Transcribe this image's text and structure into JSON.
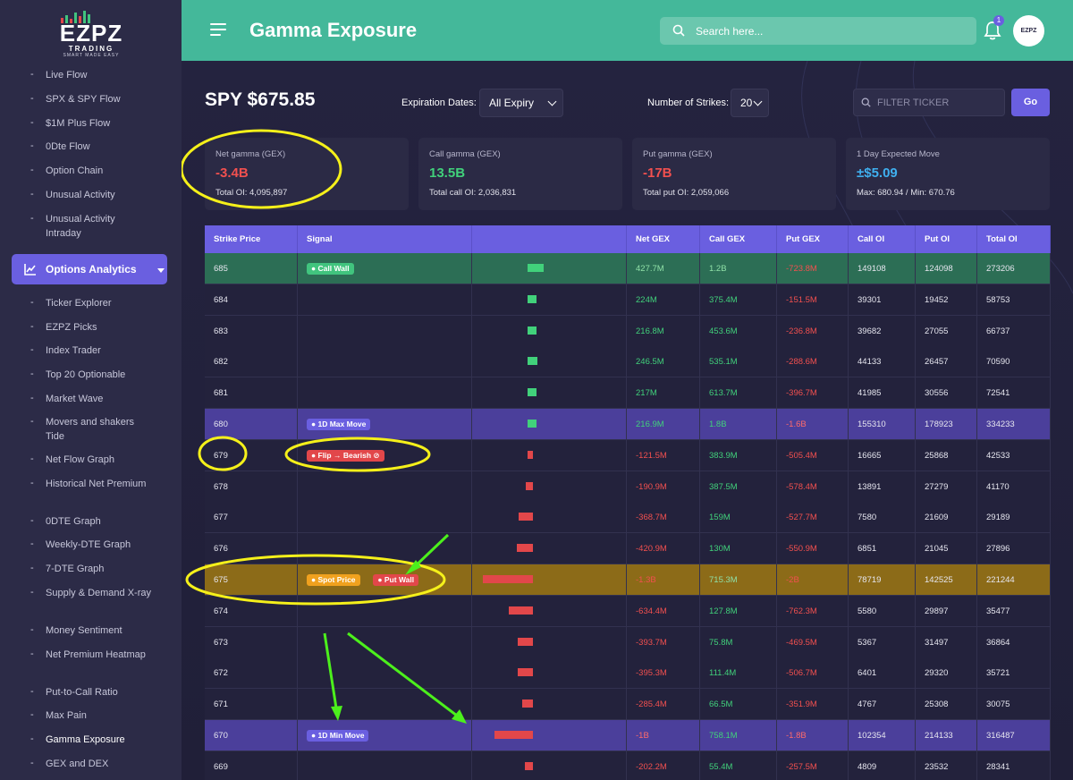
{
  "app": {
    "logo_main": "EZPZ",
    "logo_sub": "TRADING",
    "logo_tag": "SMART MADE EASY"
  },
  "sidebar": {
    "items_top": [
      "Live Flow",
      "SPX & SPY Flow",
      "$1M Plus Flow",
      "0Dte Flow",
      "Option Chain",
      "Unusual Activity",
      "Unusual Activity Intraday"
    ],
    "section_button": "Options Analytics",
    "items_bottom": [
      "Ticker Explorer",
      "EZPZ Picks",
      "Index Trader",
      "Top 20 Optionable",
      "Market Wave",
      "Movers and shakers Tide",
      "Net Flow Graph",
      "Historical Net Premium",
      "0DTE Graph",
      "Weekly-DTE Graph",
      "7-DTE Graph",
      "Supply & Demand X-ray",
      "Money Sentiment",
      "Net Premium Heatmap",
      "Put-to-Call Ratio",
      "Max Pain",
      "Gamma Exposure",
      "GEX and DEX"
    ],
    "active_item": "Gamma Exposure"
  },
  "header": {
    "title": "Gamma Exposure",
    "search_placeholder": "Search here...",
    "notification_count": "1",
    "avatar_text": "EZPZ"
  },
  "toolbar": {
    "ticker_price": "SPY $675.85",
    "expiration_label": "Expiration Dates:",
    "expiration_value": "All Expiry",
    "strikes_label": "Number of Strikes:",
    "strikes_value": "20",
    "filter_placeholder": "FILTER TICKER",
    "go_label": "Go"
  },
  "cards": [
    {
      "label": "Net gamma (GEX)",
      "value": "-3.4B",
      "sub": "Total OI: 4,095,897",
      "color": "#f2504f"
    },
    {
      "label": "Call gamma (GEX)",
      "value": "13.5B",
      "sub": "Total call OI: 2,036,831",
      "color": "#41d17b"
    },
    {
      "label": "Put gamma (GEX)",
      "value": "-17B",
      "sub": "Total put OI: 2,059,066",
      "color": "#f2504f"
    },
    {
      "label": "1 Day Expected Move",
      "value": "±$5.09",
      "sub": "Max: 680.94 / Min: 670.76",
      "color": "#3fb0f0"
    }
  ],
  "table": {
    "headers": [
      "Strike Price",
      "Signal",
      "",
      "Net GEX",
      "Call GEX",
      "Put GEX",
      "Call OI",
      "Put OI",
      "Total OI"
    ],
    "rows": [
      {
        "strike": "685",
        "signals": [
          {
            "text": "● Call Wall",
            "kind": "green"
          }
        ],
        "net": "427.7M",
        "call": "1.2B",
        "put": "-723.8M",
        "coi": "149108",
        "poi": "124098",
        "toi": "273206",
        "style": "callwall",
        "bar": 0.33
      },
      {
        "strike": "684",
        "signals": [],
        "net": "224M",
        "call": "375.4M",
        "put": "-151.5M",
        "coi": "39301",
        "poi": "19452",
        "toi": "58753",
        "style": "plain",
        "bar": 0.17
      },
      {
        "strike": "683",
        "signals": [],
        "net": "216.8M",
        "call": "453.6M",
        "put": "-236.8M",
        "coi": "39682",
        "poi": "27055",
        "toi": "66737",
        "style": "plain",
        "bar": 0.17
      },
      {
        "strike": "682",
        "signals": [],
        "net": "246.5M",
        "call": "535.1M",
        "put": "-288.6M",
        "coi": "44133",
        "poi": "26457",
        "toi": "70590",
        "style": "plain",
        "bar": 0.19
      },
      {
        "strike": "681",
        "signals": [],
        "net": "217M",
        "call": "613.7M",
        "put": "-396.7M",
        "coi": "41985",
        "poi": "30556",
        "toi": "72541",
        "style": "plain",
        "bar": 0.17
      },
      {
        "strike": "680",
        "signals": [
          {
            "text": "● 1D Max Move",
            "kind": "violet"
          }
        ],
        "net": "216.9M",
        "call": "1.8B",
        "put": "-1.6B",
        "coi": "155310",
        "poi": "178923",
        "toi": "334233",
        "style": "purple",
        "bar": 0.17
      },
      {
        "strike": "679",
        "signals": [
          {
            "text": "● Flip → Bearish ⊘",
            "kind": "red"
          }
        ],
        "net": "-121.5M",
        "call": "383.9M",
        "put": "-505.4M",
        "coi": "16665",
        "poi": "25868",
        "toi": "42533",
        "style": "plain",
        "bar": -0.1
      },
      {
        "strike": "678",
        "signals": [],
        "net": "-190.9M",
        "call": "387.5M",
        "put": "-578.4M",
        "coi": "13891",
        "poi": "27279",
        "toi": "41170",
        "style": "plain",
        "bar": -0.15
      },
      {
        "strike": "677",
        "signals": [],
        "net": "-368.7M",
        "call": "159M",
        "put": "-527.7M",
        "coi": "7580",
        "poi": "21609",
        "toi": "29189",
        "style": "plain",
        "bar": -0.28
      },
      {
        "strike": "676",
        "signals": [],
        "net": "-420.9M",
        "call": "130M",
        "put": "-550.9M",
        "coi": "6851",
        "poi": "21045",
        "toi": "27896",
        "style": "plain",
        "bar": -0.32
      },
      {
        "strike": "675",
        "signals": [
          {
            "text": "● Spot Price",
            "kind": "orange"
          },
          {
            "text": "● Put Wall",
            "kind": "red"
          }
        ],
        "net": "-1.3B",
        "call": "715.3M",
        "put": "-2B",
        "coi": "78719",
        "poi": "142525",
        "toi": "221244",
        "style": "spot",
        "bar": -1.0
      },
      {
        "strike": "674",
        "signals": [],
        "net": "-634.4M",
        "call": "127.8M",
        "put": "-762.3M",
        "coi": "5580",
        "poi": "29897",
        "toi": "35477",
        "style": "plain",
        "bar": -0.49
      },
      {
        "strike": "673",
        "signals": [],
        "net": "-393.7M",
        "call": "75.8M",
        "put": "-469.5M",
        "coi": "5367",
        "poi": "31497",
        "toi": "36864",
        "style": "plain",
        "bar": -0.3
      },
      {
        "strike": "672",
        "signals": [],
        "net": "-395.3M",
        "call": "111.4M",
        "put": "-506.7M",
        "coi": "6401",
        "poi": "29320",
        "toi": "35721",
        "style": "plain",
        "bar": -0.3
      },
      {
        "strike": "671",
        "signals": [],
        "net": "-285.4M",
        "call": "66.5M",
        "put": "-351.9M",
        "coi": "4767",
        "poi": "25308",
        "toi": "30075",
        "style": "plain",
        "bar": -0.22
      },
      {
        "strike": "670",
        "signals": [
          {
            "text": "● 1D Min Move",
            "kind": "violet"
          }
        ],
        "net": "-1B",
        "call": "758.1M",
        "put": "-1.8B",
        "coi": "102354",
        "poi": "214133",
        "toi": "316487",
        "style": "purple",
        "bar": -0.77
      },
      {
        "strike": "669",
        "signals": [],
        "net": "-202.2M",
        "call": "55.4M",
        "put": "-257.5M",
        "coi": "4809",
        "poi": "23532",
        "toi": "28341",
        "style": "plain",
        "bar": -0.16
      }
    ]
  },
  "colors": {
    "accent": "#6a5fe0",
    "header": "#44b89a",
    "positive": "#41d17b",
    "negative": "#f2504f",
    "annotation_circle": "#f5f01a",
    "annotation_arrow": "#4cf01c"
  }
}
